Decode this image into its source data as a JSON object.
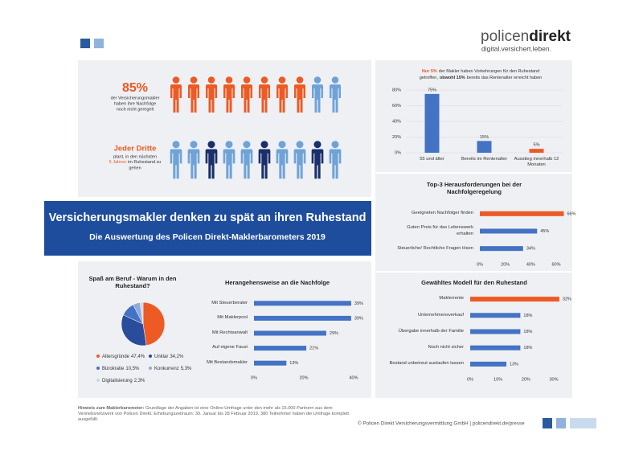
{
  "header": {
    "logo_light": "policen",
    "logo_bold": "direkt",
    "tagline": "digital.versichert.leben."
  },
  "pictogram": {
    "stat1": {
      "headline": "85%",
      "lines": [
        "der Versicherungsmakler",
        "haben ihre Nachfolge",
        "noch nicht geregelt"
      ]
    },
    "stat2": {
      "headline": "Jeder Dritte",
      "line1": "plant, in den nächsten",
      "highlight": "5 Jahren",
      "line2": "im Ruhestand zu",
      "line3": "gehen"
    }
  },
  "banner": {
    "title": "Versicherungsmakler denken zu spät an ihren Ruhestand",
    "subtitle": "Die Auswertung des Policen Direkt-Maklerbarometers 2019"
  },
  "chart_data": [
    {
      "type": "bar",
      "title": [
        "Nur 5%",
        "der Makler haben Vorkehrungen für den Ruhestand",
        "getroffen,",
        "obwohl 15%",
        "bereits das Rentenalter erreicht haben"
      ],
      "categories": [
        "55 und älter",
        "Bereits im Rentenalter",
        "Ausstieg innerhalb 12 Monaten"
      ],
      "values": [
        75,
        15,
        5
      ],
      "value_labels": [
        "75%",
        "15%",
        "5%"
      ],
      "colors": [
        "#4472c4",
        "#4472c4",
        "#ed5a24"
      ],
      "ylim": [
        0,
        80
      ],
      "yticks": [
        {
          "value": 0,
          "label": "0%"
        },
        {
          "value": 20,
          "label": "20%"
        },
        {
          "value": 40,
          "label": "40%"
        },
        {
          "value": 60,
          "label": "60%"
        },
        {
          "value": 80,
          "label": "80%"
        }
      ],
      "grid": true
    },
    {
      "type": "hbar",
      "title": "Top-3 Herausforderungen bei der Nachfolgeregelung",
      "categories": [
        "Geeigneten Nachfolger finden",
        "Guten Preis für das Lebenswerk erhalten",
        "Steuerliche/ Rechtliche Fragen lösen"
      ],
      "values": [
        66,
        45,
        34
      ],
      "value_labels": [
        "66%",
        "45%",
        "34%"
      ],
      "colors": [
        "#ed5a24",
        "#4472c4",
        "#4472c4"
      ],
      "xlim": [
        0,
        60
      ],
      "xticks": [
        {
          "value": 0,
          "label": "0%"
        },
        {
          "value": 20,
          "label": "20%"
        },
        {
          "value": 40,
          "label": "40%"
        },
        {
          "value": 60,
          "label": "60%"
        }
      ],
      "grid": false
    },
    {
      "type": "hbar",
      "title": "Gewähltes Modell für den Ruhestand",
      "categories": [
        "Maklerrente",
        "Unternehmensverkauf",
        "Übergabe innerhalb der Familie",
        "Noch nicht sicher",
        "Bestand unbetreut auslaufen lassen"
      ],
      "values": [
        32,
        18,
        18,
        18,
        13
      ],
      "value_labels": [
        "32%",
        "18%",
        "18%",
        "18%",
        "13%"
      ],
      "colors": [
        "#ed5a24",
        "#4472c4",
        "#4472c4",
        "#4472c4",
        "#4472c4"
      ],
      "xlim": [
        0,
        30
      ],
      "xticks": [
        {
          "value": 0,
          "label": "0%"
        },
        {
          "value": 10,
          "label": "10%"
        },
        {
          "value": 20,
          "label": "20%"
        },
        {
          "value": 30,
          "label": "30%"
        }
      ],
      "grid": false
    },
    {
      "type": "pie",
      "title": "Spaß am Beruf - Warum in den Ruhestand?",
      "categories": [
        "Altersgründe",
        "Unklar",
        "Bürokratie",
        "Konkurrenz",
        "Digitalisierung"
      ],
      "values": [
        47.4,
        34.2,
        10.5,
        5.3,
        2.3
      ],
      "value_labels": [
        "47,4%",
        "34,2%",
        "10,5%",
        "5,3%",
        "2,3%"
      ],
      "colors": [
        "#ed5a24",
        "#2a4d9b",
        "#4472c4",
        "#8eaadb",
        "#c9d6ee"
      ]
    },
    {
      "type": "hbar",
      "title": "Herangehensweise an die Nachfolge",
      "categories": [
        "Mit Steuerberater",
        "Mit Maklerpool",
        "Mit Rechtsanwalt",
        "Auf eigene Faust",
        "Mit Bestandsmakler"
      ],
      "values": [
        39,
        39,
        29,
        21,
        13
      ],
      "value_labels": [
        "39%",
        "39%",
        "29%",
        "21%",
        "13%"
      ],
      "colors": [
        "#4472c4",
        "#4472c4",
        "#4472c4",
        "#4472c4",
        "#4472c4"
      ],
      "xlim": [
        0,
        40
      ],
      "xticks": [
        {
          "value": 0,
          "label": "0%"
        },
        {
          "value": 20,
          "label": "20%"
        },
        {
          "value": 40,
          "label": "40%"
        }
      ],
      "grid": false
    }
  ],
  "footer": {
    "note_label": "Hinweis zum Maklerbarometer:",
    "note": "Grundlage der Angaben ist eine Online-Umfrage unter den mehr als 15.000 Partnern aus dem Vertriebsnetzwerk von Policen Direkt. Erhebungszeitraum: 30. Januar bis 28 Februar 2019. 380 Teilnehmer haben die Umfrage komplett ausgefüllt.",
    "copyright": "© Policen Direkt Versicherungsvermittlung GmbH | policendirekt.de/presse"
  }
}
